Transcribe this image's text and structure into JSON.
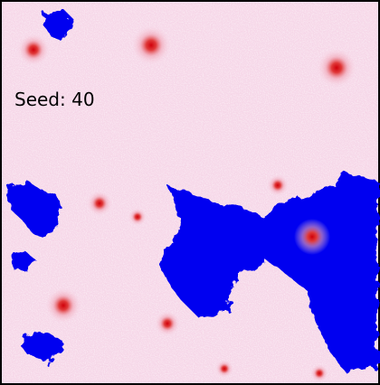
{
  "seed_label": "Seed: 40"
}
